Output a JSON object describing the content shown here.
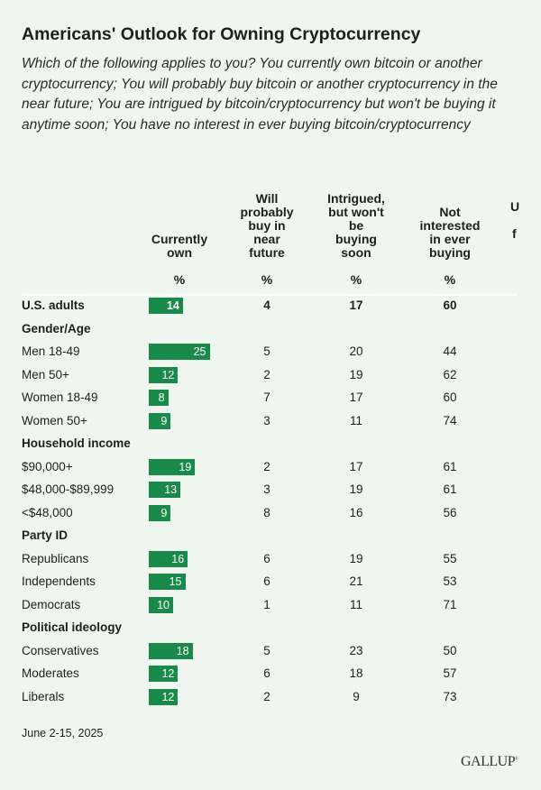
{
  "title": "Americans' Outlook for Owning Cryptocurrency",
  "subtitle": "Which of the following applies to you? You currently own bitcoin or another cryptocurrency; You will probably buy bitcoin or another cryptocurrency in the near future; You are intrigued by bitcoin/cryptocurrency but won't be buying it anytime soon; You have no interest in ever buying bitcoin/cryptocurrency",
  "footer_date": "June 2-15, 2025",
  "logo": "GALLUP",
  "colors": {
    "bar": "#1a8a4a",
    "background": "#eff6f0"
  },
  "chart_data": {
    "type": "table",
    "columns": [
      "Currently own",
      "Will probably buy in near future",
      "Intrigued, but won't be buying soon",
      "Not interested in ever buying"
    ],
    "column_lines": [
      [
        "Currently",
        "own"
      ],
      [
        "Will",
        "probably",
        "buy in",
        "near",
        "future"
      ],
      [
        "Intrigued,",
        "but won't",
        "be",
        "buying",
        "soon"
      ],
      [
        "Not",
        "interested",
        "in ever",
        "buying"
      ]
    ],
    "partial_column_fragments": [
      "U",
      "f"
    ],
    "unit": "%",
    "rows": [
      {
        "label": "U.S. adults",
        "type": "total",
        "values": [
          14,
          4,
          17,
          60
        ]
      },
      {
        "label": "Gender/Age",
        "type": "group"
      },
      {
        "label": "Men 18-49",
        "values": [
          25,
          5,
          20,
          44
        ]
      },
      {
        "label": "Men 50+",
        "values": [
          12,
          2,
          19,
          62
        ]
      },
      {
        "label": "Women 18-49",
        "values": [
          8,
          7,
          17,
          60
        ]
      },
      {
        "label": "Women 50+",
        "values": [
          9,
          3,
          11,
          74
        ]
      },
      {
        "label": "Household income",
        "type": "group"
      },
      {
        "label": "$90,000+",
        "values": [
          19,
          2,
          17,
          61
        ]
      },
      {
        "label": "$48,000-$89,999",
        "values": [
          13,
          3,
          19,
          61
        ]
      },
      {
        "label": "<$48,000",
        "values": [
          9,
          8,
          16,
          56
        ]
      },
      {
        "label": "Party ID",
        "type": "group"
      },
      {
        "label": "Republicans",
        "values": [
          16,
          6,
          19,
          55
        ]
      },
      {
        "label": "Independents",
        "values": [
          15,
          6,
          21,
          53
        ]
      },
      {
        "label": "Democrats",
        "values": [
          10,
          1,
          11,
          71
        ]
      },
      {
        "label": "Political ideology",
        "type": "group"
      },
      {
        "label": "Conservatives",
        "values": [
          18,
          5,
          23,
          50
        ]
      },
      {
        "label": "Moderates",
        "values": [
          12,
          6,
          18,
          57
        ]
      },
      {
        "label": "Liberals",
        "values": [
          12,
          2,
          9,
          73
        ]
      }
    ]
  }
}
